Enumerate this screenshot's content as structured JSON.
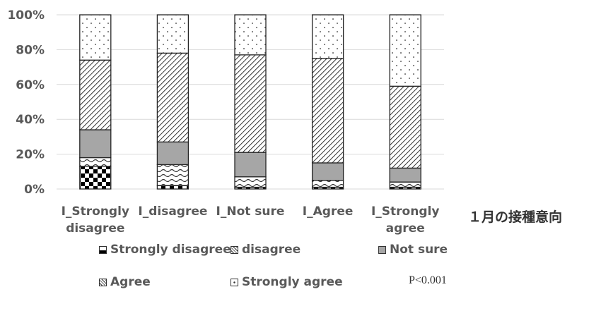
{
  "chart_data": {
    "type": "bar",
    "stacked": true,
    "categories": [
      [
        "I_Strongly",
        "disagree"
      ],
      [
        "I_disagree"
      ],
      [
        "I_Not sure"
      ],
      [
        "I_Agree"
      ],
      [
        "I_Strongly",
        "agree"
      ]
    ],
    "series": [
      {
        "name": "Strongly disagree",
        "values": [
          13,
          2,
          1,
          1,
          1
        ],
        "pattern": "checker"
      },
      {
        "name": "disagree",
        "values": [
          5,
          12,
          6,
          4,
          3
        ],
        "pattern": "wave"
      },
      {
        "name": "Not sure",
        "values": [
          16,
          13,
          14,
          10,
          8
        ],
        "pattern": "gray"
      },
      {
        "name": "Agree",
        "values": [
          40,
          51,
          56,
          60,
          47
        ],
        "pattern": "diag"
      },
      {
        "name": "Strongly agree",
        "values": [
          26,
          22,
          23,
          25,
          41
        ],
        "pattern": "dots"
      }
    ],
    "ylim": [
      0,
      100
    ],
    "yticks": [
      "0%",
      "20%",
      "40%",
      "60%",
      "80%",
      "100%"
    ],
    "grid": true,
    "legend": "bottom"
  },
  "xlabel": "１月の接種意向",
  "legend_labels": [
    "Strongly disagree",
    "disagree",
    "Not sure",
    "Agree",
    "Strongly agree"
  ],
  "annotation": "P<0.001"
}
